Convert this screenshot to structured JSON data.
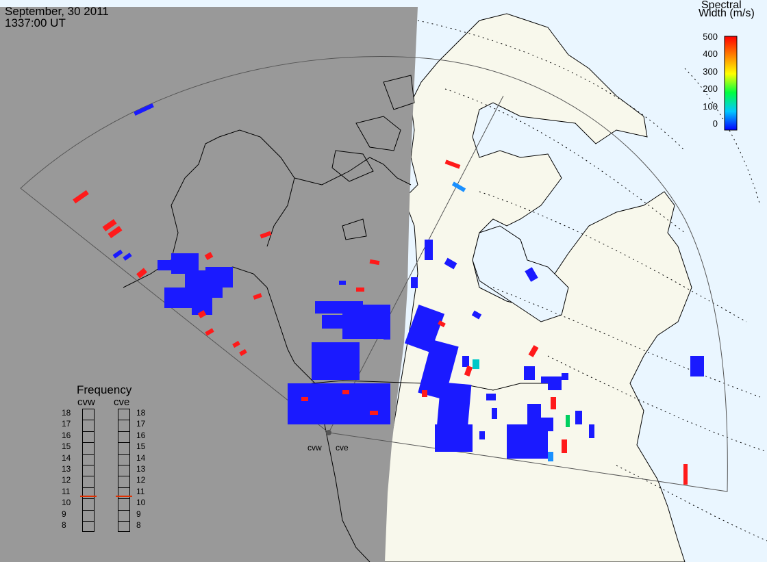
{
  "header": {
    "date": "September, 30 2011",
    "time": "1337:00 UT"
  },
  "colorbar": {
    "title_line1": "Spectral",
    "title_line2": "Width (m/s)",
    "ticks": [
      "500",
      "400",
      "300",
      "200",
      "100",
      "0"
    ],
    "colors": [
      "#0000ff",
      "#00c8ff",
      "#00ff40",
      "#ffff00",
      "#ff8000",
      "#ff0000"
    ]
  },
  "frequency_panel": {
    "title": "Frequency",
    "radars": [
      {
        "name": "cvw",
        "freq_mhz": 10.75
      },
      {
        "name": "cve",
        "freq_mhz": 10.75
      }
    ],
    "levels": [
      "18",
      "17",
      "16",
      "15",
      "14",
      "13",
      "12",
      "11",
      "10",
      "9",
      "8"
    ]
  },
  "radar_sites": {
    "left_label": "cvw",
    "right_label": "cve"
  },
  "map": {
    "night_color": "#999999",
    "land_color": "#f8f8ec",
    "ocean_color": "#eaf6ff",
    "scatter_note_colors": {
      "low": "#1a1aff",
      "high": "#ff1a1a"
    }
  }
}
